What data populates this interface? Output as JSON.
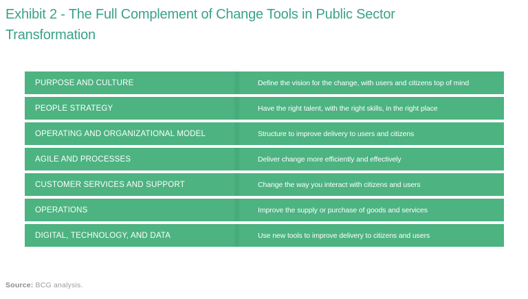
{
  "exhibit": {
    "title": "Exhibit 2 - The Full Complement of Change Tools in Public Sector Transformation"
  },
  "table": {
    "rows": [
      {
        "label": "PURPOSE AND CULTURE",
        "description": "Define the vision for the change, with users and citizens top of mind"
      },
      {
        "label": "PEOPLE STRATEGY",
        "description": "Have the right talent, with the right skills, in the right place"
      },
      {
        "label": "OPERATING AND ORGANIZATIONAL MODEL",
        "description": "Structure to improve delivery to users and citizens"
      },
      {
        "label": "AGILE AND PROCESSES",
        "description": "Deliver change more efficiently and effectively"
      },
      {
        "label": "CUSTOMER SERVICES AND SUPPORT",
        "description": "Change the way you interact with citizens and users"
      },
      {
        "label": "OPERATIONS",
        "description": "Improve the supply or purchase of goods and services"
      },
      {
        "label": "DIGITAL, TECHNOLOGY, AND DATA",
        "description": "Use new tools to improve delivery to citizens and users"
      }
    ]
  },
  "source": {
    "label": "Source:",
    "text": "BCG analysis."
  },
  "colors": {
    "title_teal": "#3aa188",
    "row_green": "#4db381",
    "divider_green": "#48ab7c",
    "row_text": "#ffffff",
    "source_gray": "#9b9b9b"
  }
}
